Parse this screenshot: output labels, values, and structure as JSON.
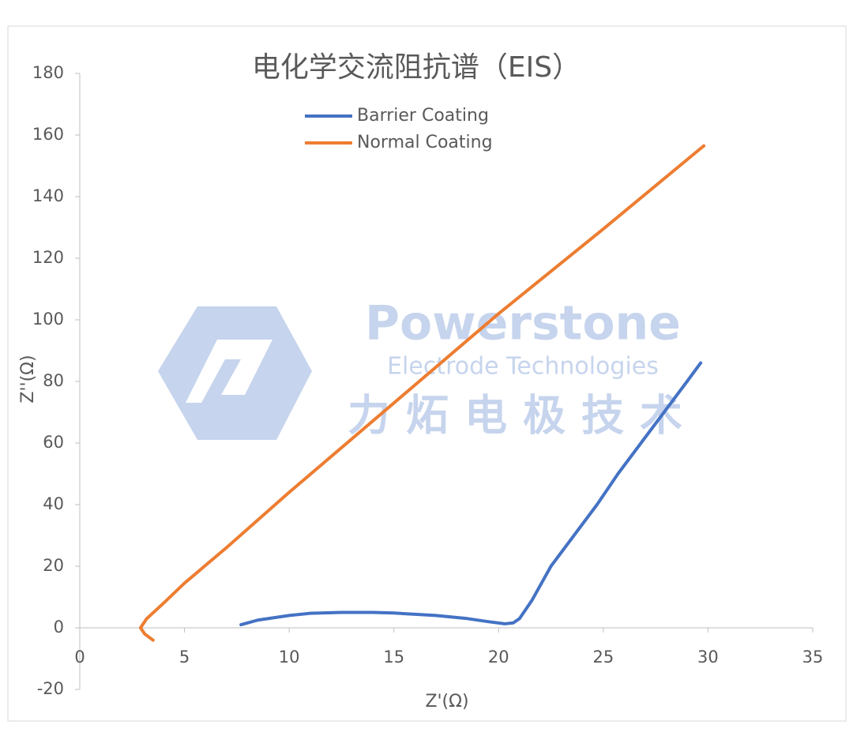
{
  "chart_data": {
    "type": "line",
    "title": "电化学交流阻抗谱（EIS）",
    "x_label": "Z'(Ω)",
    "y_label": "Z''(Ω)",
    "annotations": [
      "Powerstone",
      "Electrode Technologies",
      "力炻电极技术"
    ],
    "xlim": [
      0,
      35
    ],
    "xticks": [
      0,
      5,
      10,
      15,
      20,
      25,
      30,
      35
    ],
    "ylim": [
      -20,
      180
    ],
    "yticks": [
      -20,
      0,
      20,
      40,
      60,
      80,
      100,
      120,
      140,
      160,
      180
    ],
    "grid": false,
    "legend": "top-left",
    "series": [
      {
        "name": "Barrier Coating",
        "color": "#4472c4",
        "x": [
          7.7,
          8.5,
          10,
          11,
          12.5,
          14,
          15,
          17,
          18.5,
          19.5,
          20.3,
          20.7,
          21,
          21.3,
          21.6,
          22.5,
          23.6,
          24.7,
          25.7,
          26.8,
          27.9,
          29,
          29.65
        ],
        "values": [
          1,
          2.5,
          4,
          4.7,
          5,
          5,
          4.8,
          4,
          3,
          2,
          1.3,
          1.6,
          3,
          6,
          9,
          20,
          30,
          40,
          50,
          60,
          70,
          80,
          86
        ]
      },
      {
        "name": "Normal Coating",
        "color": "#ed7d31",
        "x": [
          3.5,
          3.1,
          2.9,
          3.2,
          4,
          5,
          7,
          10,
          15,
          20,
          25,
          29.8
        ],
        "values": [
          -4,
          -2,
          0,
          3,
          8,
          14.5,
          26,
          44,
          73,
          102,
          129.5,
          156.5
        ]
      }
    ]
  }
}
